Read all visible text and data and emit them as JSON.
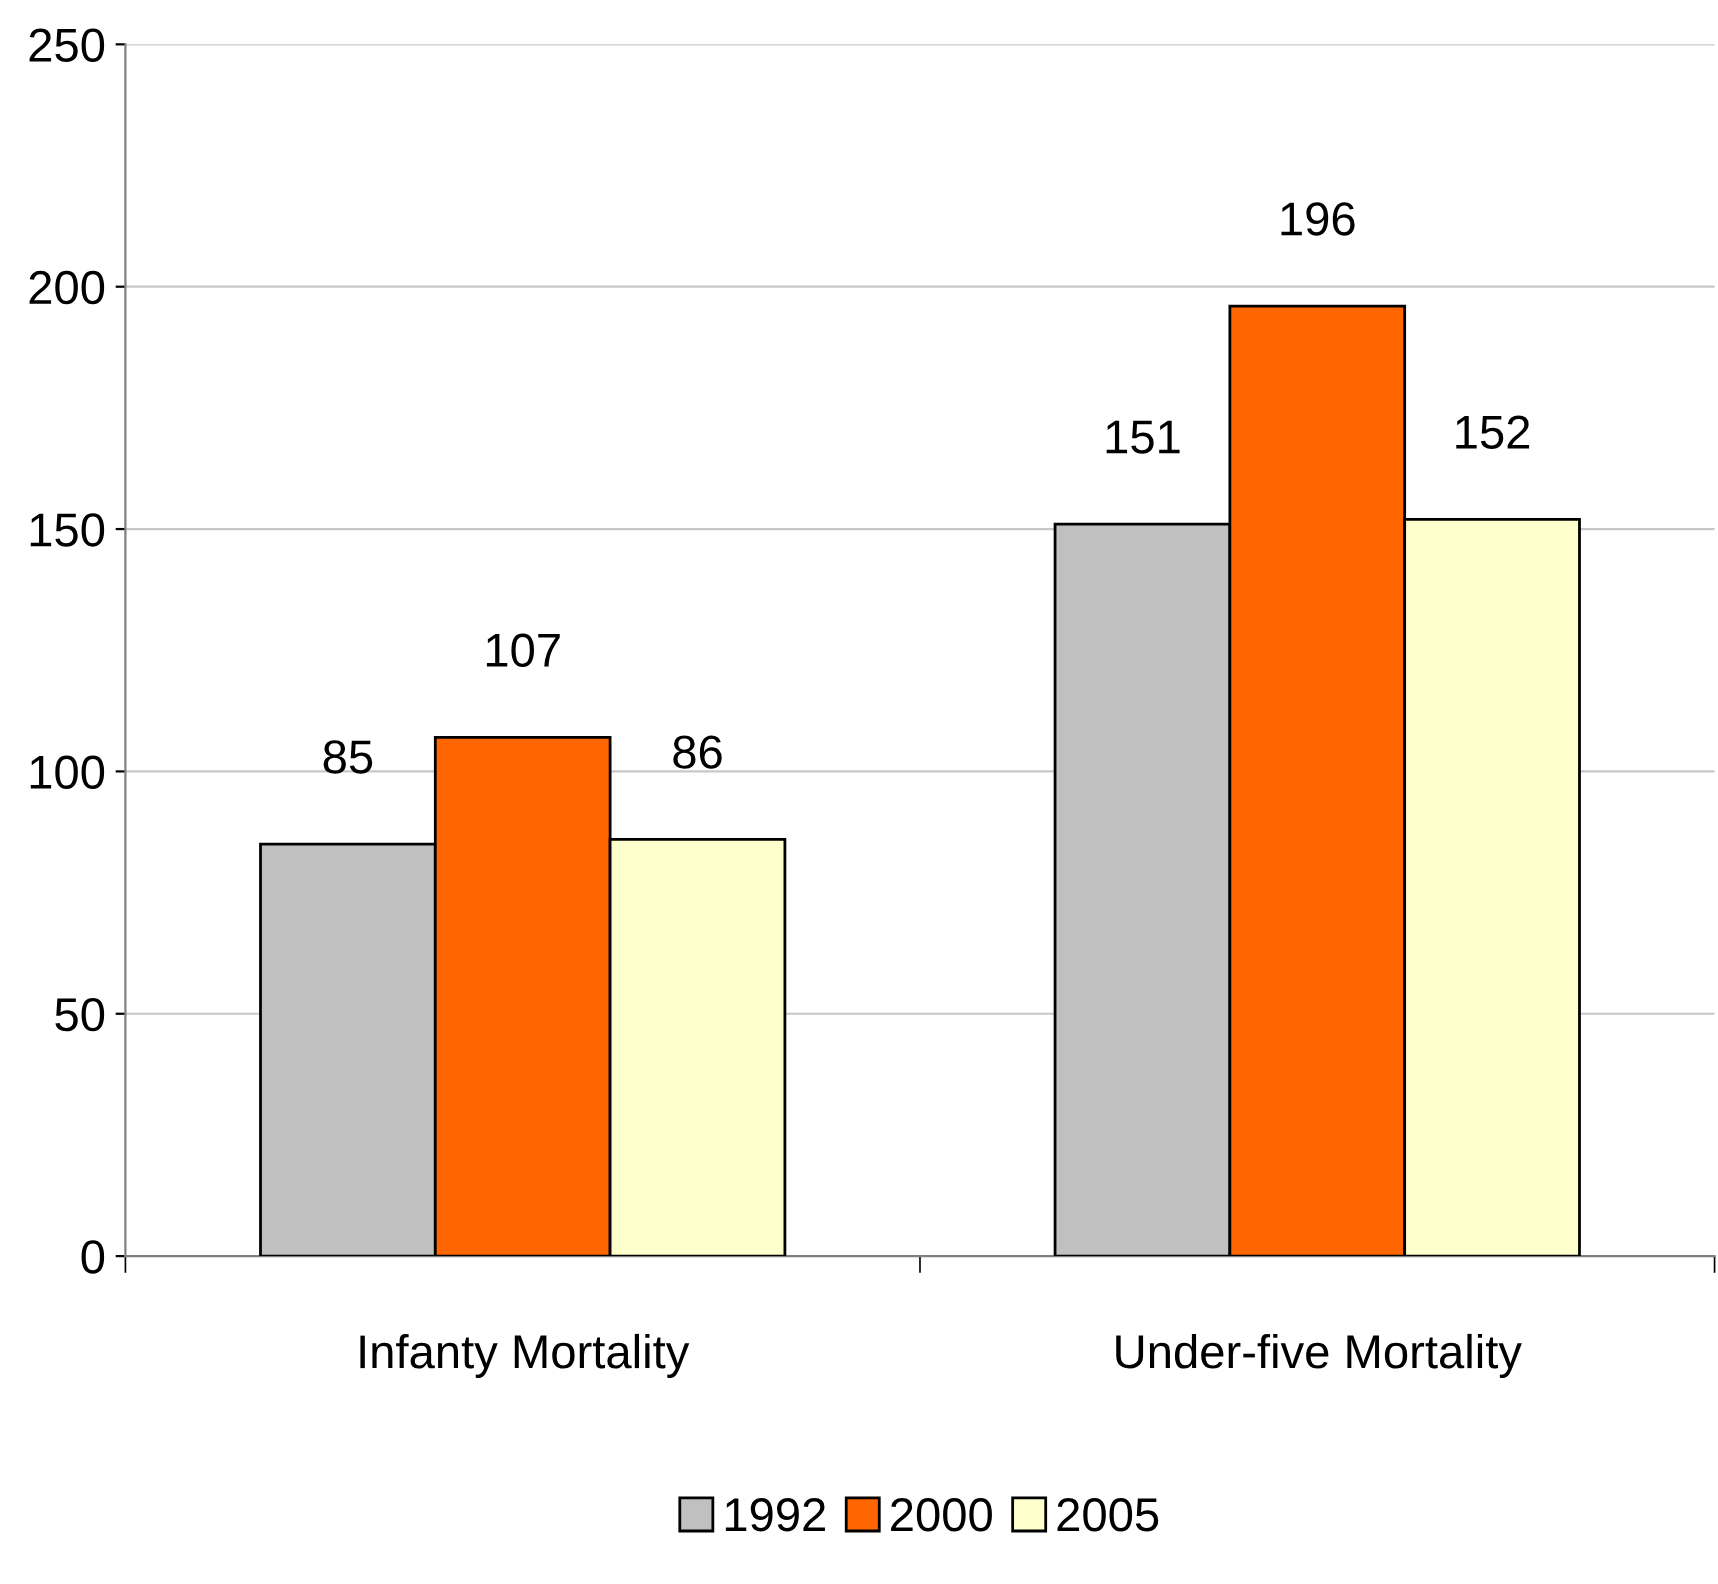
{
  "chart_data": {
    "type": "bar",
    "categories": [
      "Infanty Mortality",
      "Under-five Mortality"
    ],
    "series": [
      {
        "name": "1992",
        "color": "#c0c0c0",
        "values": [
          85,
          151
        ]
      },
      {
        "name": "2000",
        "color": "#ff6600",
        "values": [
          107,
          196
        ]
      },
      {
        "name": "2005",
        "color": "#ffffcc",
        "values": [
          86,
          152
        ]
      }
    ],
    "ylim": [
      0,
      250
    ],
    "yticks": [
      0,
      50,
      100,
      150,
      200,
      250
    ],
    "grid": "y",
    "legend": "bottom",
    "data_labels": true
  }
}
